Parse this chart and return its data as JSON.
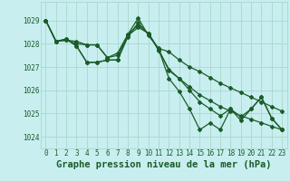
{
  "xlabel": "Graphe pression niveau de la mer (hPa)",
  "ylim": [
    1023.5,
    1029.8
  ],
  "xlim": [
    -0.5,
    23.5
  ],
  "yticks": [
    1024,
    1025,
    1026,
    1027,
    1028,
    1029
  ],
  "xticks": [
    0,
    1,
    2,
    3,
    4,
    5,
    6,
    7,
    8,
    9,
    10,
    11,
    12,
    13,
    14,
    15,
    16,
    17,
    18,
    19,
    20,
    21,
    22,
    23
  ],
  "bg_color": "#c8eef0",
  "grid_color": "#a8d8cc",
  "line_color": "#1a5c28",
  "lines": [
    [
      1029.0,
      1028.1,
      1028.2,
      1027.9,
      1027.2,
      1027.2,
      1027.3,
      1027.3,
      1028.4,
      1029.1,
      1028.35,
      1027.8,
      1027.65,
      1027.3,
      1027.0,
      1026.8,
      1026.55,
      1026.3,
      1026.1,
      1025.9,
      1025.7,
      1025.5,
      1025.3,
      1025.1
    ],
    [
      1029.0,
      1028.1,
      1028.15,
      1028.1,
      1027.95,
      1027.95,
      1027.4,
      1027.6,
      1028.4,
      1028.8,
      1028.45,
      1027.75,
      1026.85,
      1026.5,
      1026.15,
      1025.8,
      1025.55,
      1025.3,
      1025.1,
      1024.9,
      1024.75,
      1024.6,
      1024.45,
      1024.3
    ],
    [
      1029.0,
      1028.1,
      1028.15,
      1028.0,
      1027.95,
      1027.95,
      1027.4,
      1027.5,
      1028.35,
      1028.7,
      1028.45,
      1027.7,
      1026.9,
      1026.5,
      1026.0,
      1025.5,
      1025.2,
      1024.9,
      1025.2,
      1024.85,
      1025.2,
      1025.7,
      1024.8,
      1024.3
    ],
    [
      1029.0,
      1028.1,
      1028.2,
      1027.9,
      1027.2,
      1027.2,
      1027.3,
      1027.3,
      1028.3,
      1028.9,
      1028.4,
      1027.75,
      1026.5,
      1025.95,
      1025.2,
      1024.3,
      1024.6,
      1024.3,
      1025.2,
      1024.7,
      1025.2,
      1025.7,
      1024.8,
      1024.3
    ]
  ],
  "marker": "D",
  "markersize": 2.0,
  "linewidth": 0.9,
  "label_fontsize": 7.5,
  "tick_fontsize": 5.5
}
